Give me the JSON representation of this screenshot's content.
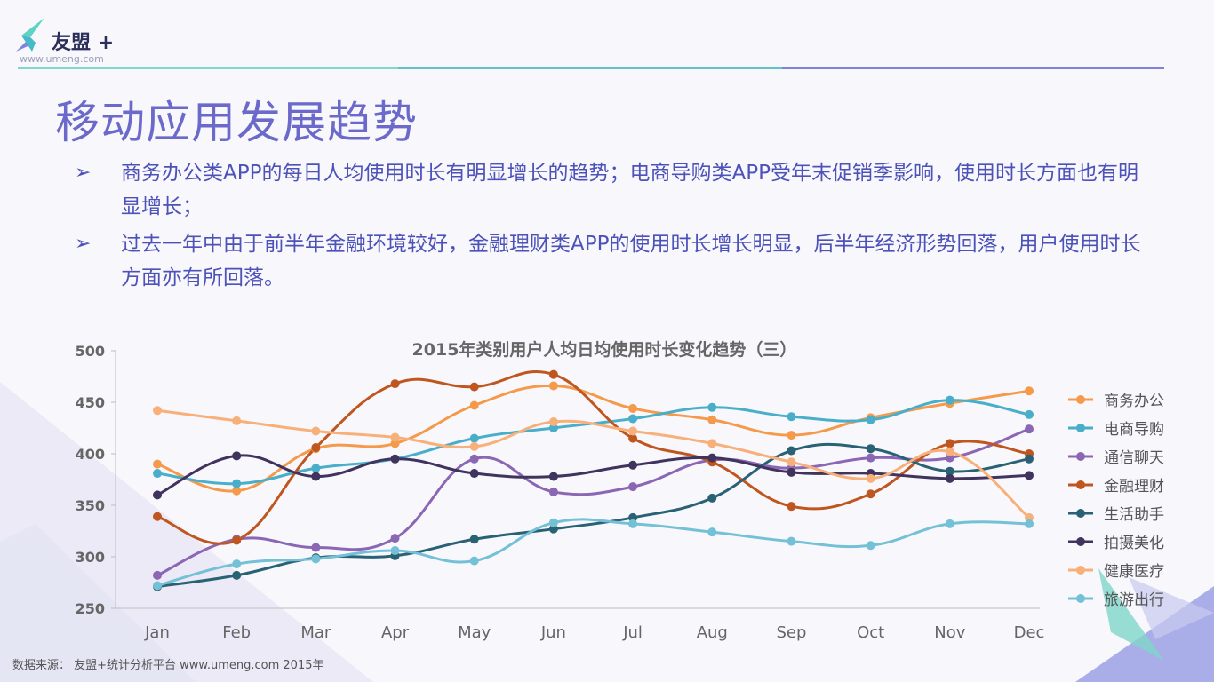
{
  "brand": {
    "name": "友盟",
    "plus": "+",
    "url": "www.umeng.com",
    "colors": {
      "primary": "#6b69c9",
      "accent_teal": "#5fd3c3",
      "accent_blue": "#7b85e0"
    }
  },
  "page": {
    "title": "移动应用发展趋势",
    "bullets": [
      {
        "marker": "➢",
        "text": "商务办公类APP的每日人均使用时长有明显增长的趋势；电商导购类APP受年末促销季影响，使用时长方面也有明显增长；"
      },
      {
        "marker": "➢",
        "text": "过去一年中由于前半年金融环境较好，金融理财类APP的使用时长增长明显，后半年经济形势回落，用户使用时长方面亦有所回落。"
      }
    ],
    "source": "数据来源： 友盟+统计分析平台 www.umeng.com 2015年"
  },
  "chart_data": {
    "type": "line",
    "title": "2015年类别用户人均日均使用时长变化趋势（三）",
    "categories": [
      "Jan",
      "Feb",
      "Mar",
      "Apr",
      "May",
      "Jun",
      "Jul",
      "Aug",
      "Sep",
      "Oct",
      "Nov",
      "Dec"
    ],
    "ylim": [
      250,
      500
    ],
    "yticks": [
      250,
      300,
      350,
      400,
      450,
      500
    ],
    "grid": false,
    "legend_position": "right",
    "smooth": true,
    "series": [
      {
        "name": "商务办公",
        "color": "#f59a4a",
        "values": [
          390,
          364,
          405,
          410,
          447,
          466,
          444,
          433,
          418,
          435,
          449,
          461
        ]
      },
      {
        "name": "电商导购",
        "color": "#49aec9",
        "values": [
          381,
          371,
          386,
          395,
          415,
          425,
          434,
          445,
          436,
          433,
          452,
          438
        ]
      },
      {
        "name": "通信聊天",
        "color": "#8b66b4",
        "values": [
          282,
          317,
          309,
          318,
          395,
          363,
          368,
          394,
          386,
          396,
          396,
          424
        ]
      },
      {
        "name": "金融理财",
        "color": "#c0561f",
        "values": [
          339,
          316,
          406,
          468,
          465,
          477,
          415,
          392,
          349,
          361,
          410,
          400
        ]
      },
      {
        "name": "生活助手",
        "color": "#2a6275",
        "values": [
          271,
          282,
          299,
          301,
          317,
          327,
          338,
          357,
          403,
          405,
          383,
          395
        ]
      },
      {
        "name": "拍摄美化",
        "color": "#40335d",
        "values": [
          360,
          398,
          378,
          395,
          381,
          378,
          389,
          396,
          382,
          381,
          376,
          379
        ]
      },
      {
        "name": "健康医疗",
        "color": "#f8b07a",
        "values": [
          442,
          432,
          422,
          416,
          407,
          431,
          422,
          410,
          392,
          376,
          402,
          338
        ]
      },
      {
        "name": "旅游出行",
        "color": "#74c0d6",
        "values": [
          272,
          293,
          298,
          306,
          296,
          333,
          332,
          324,
          315,
          311,
          332,
          332
        ]
      }
    ]
  }
}
